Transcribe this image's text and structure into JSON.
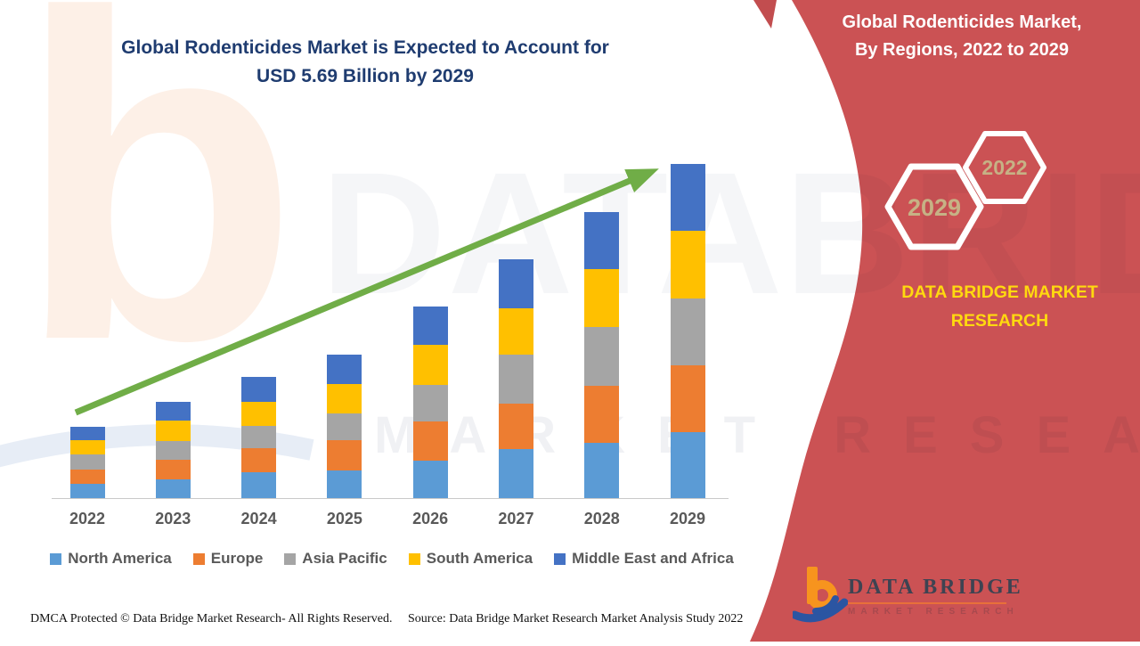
{
  "title": {
    "line1": "Global Rodenticides Market is Expected to Account for",
    "line2": "USD 5.69 Billion by 2029"
  },
  "panel": {
    "heading_line1": "Global Rodenticides Market,",
    "heading_line2": "By Regions, 2022 to 2029",
    "hex_large_label": "2029",
    "hex_small_label": "2022",
    "brand_line1": "DATA BRIDGE MARKET",
    "brand_line2": "RESEARCH",
    "bg_color": "#cb5254",
    "brand_color": "#ffd90f",
    "hex_label_color": "#c6b285"
  },
  "footer": {
    "dmca": "DMCA Protected © Data Bridge Market Research- All Rights Reserved.",
    "source": "Source: Data Bridge Market Research Market Analysis Study 2022"
  },
  "logo": {
    "name": "DATA BRIDGE",
    "tagline": "MARKET RESEARCH"
  },
  "watermark": {
    "letter": "b",
    "big": "DATABRIDGE",
    "sub": "MARKET RESEARCH"
  },
  "chart_data": {
    "type": "bar",
    "stacked": true,
    "title": "Global Rodenticides Market is Expected to Account for USD 5.69 Billion by 2029",
    "unit": "USD Billion",
    "categories": [
      "2022",
      "2023",
      "2024",
      "2025",
      "2026",
      "2027",
      "2028",
      "2029"
    ],
    "series": [
      {
        "name": "North America",
        "color": "#5b9bd5",
        "values": [
          0.24,
          0.32,
          0.44,
          0.47,
          0.64,
          0.83,
          0.94,
          1.12
        ]
      },
      {
        "name": "Europe",
        "color": "#ed7d31",
        "values": [
          0.24,
          0.33,
          0.41,
          0.52,
          0.67,
          0.77,
          0.97,
          1.14
        ]
      },
      {
        "name": "Asia Pacific",
        "color": "#a5a5a5",
        "values": [
          0.26,
          0.32,
          0.38,
          0.46,
          0.62,
          0.83,
          1.0,
          1.14
        ]
      },
      {
        "name": "South America",
        "color": "#ffc000",
        "values": [
          0.24,
          0.35,
          0.41,
          0.5,
          0.68,
          0.79,
          0.99,
          1.15
        ]
      },
      {
        "name": "Middle East and Africa",
        "color": "#4472c4",
        "values": [
          0.23,
          0.32,
          0.42,
          0.5,
          0.65,
          0.83,
          0.97,
          1.14
        ]
      }
    ],
    "totals": [
      1.21,
      1.64,
      2.06,
      2.45,
      3.26,
      4.05,
      4.87,
      5.69
    ],
    "ylim": [
      0,
      5.8
    ],
    "grid": false,
    "legend_position": "bottom",
    "annotations": [
      "green upward trend arrow across bars"
    ],
    "trend_arrow_color": "#70ad47"
  }
}
